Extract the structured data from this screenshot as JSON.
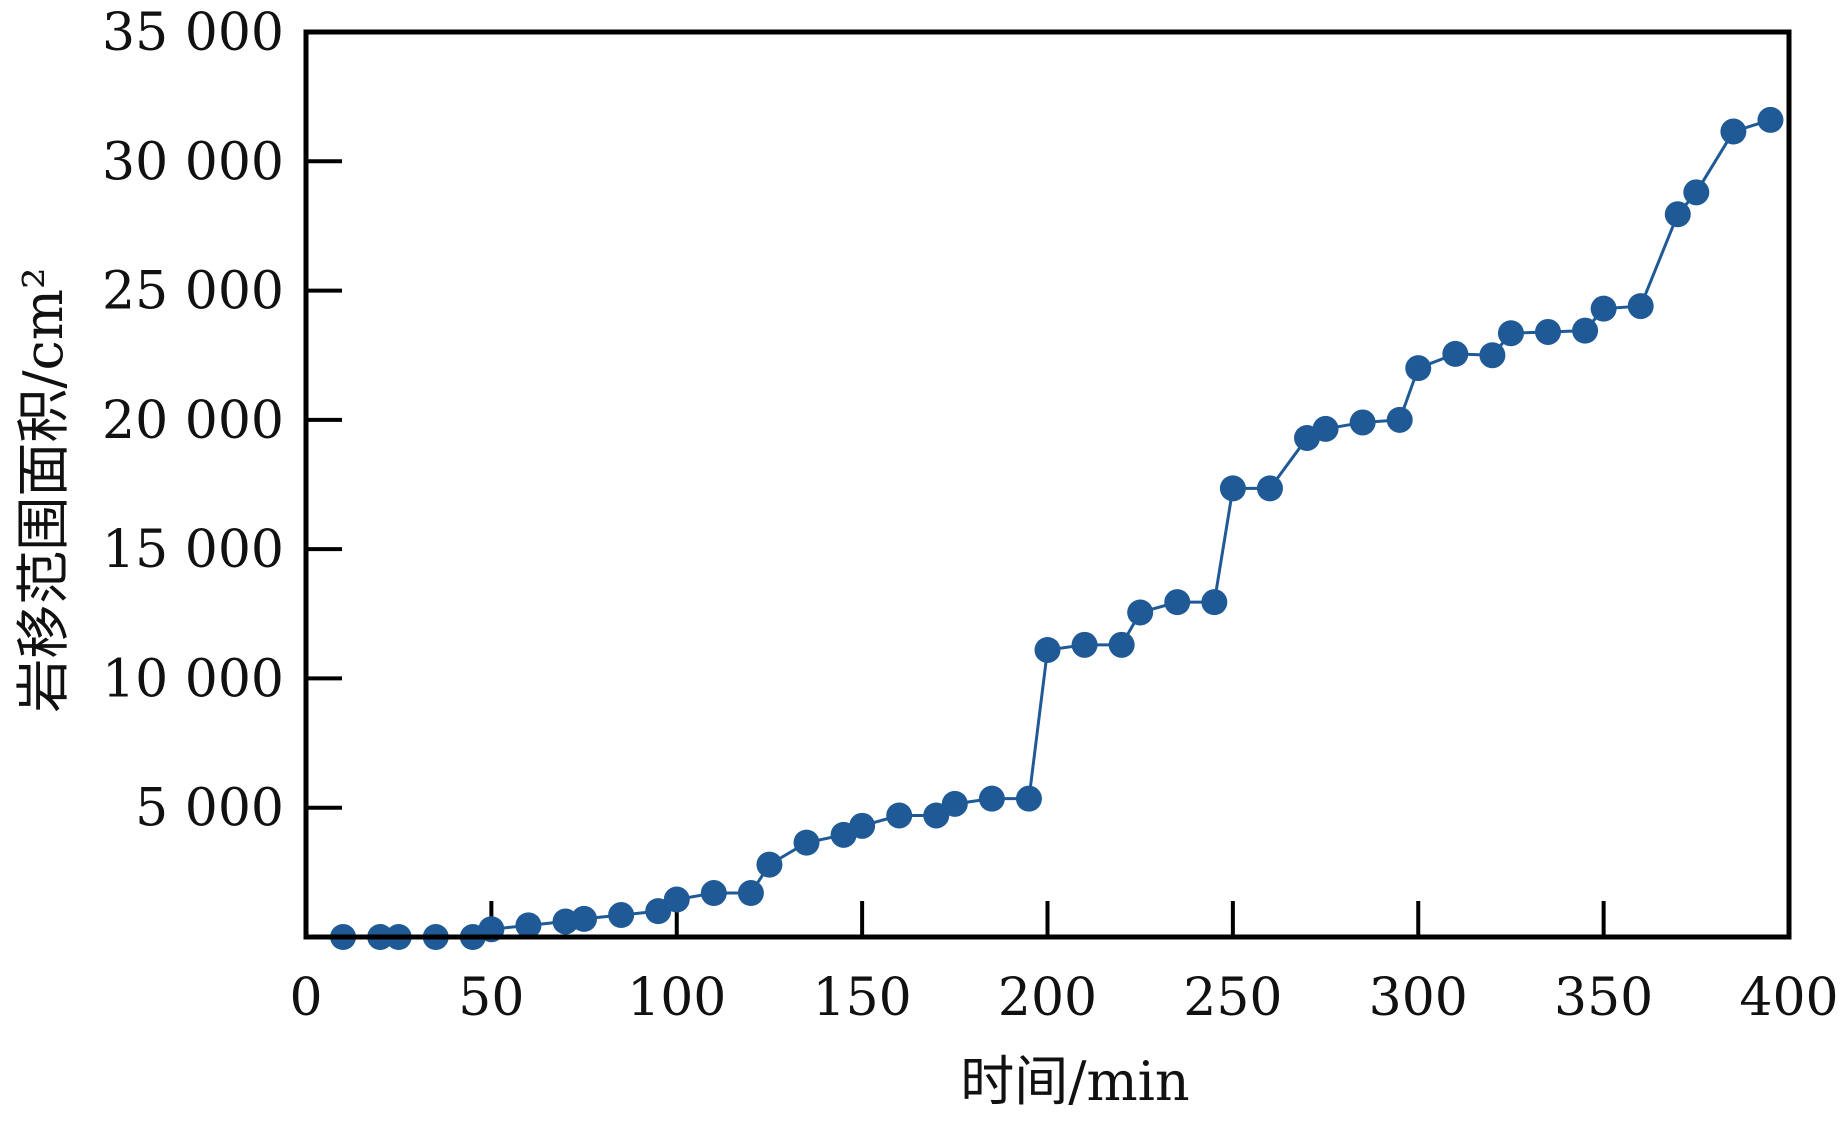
{
  "chart_data": {
    "type": "line",
    "title": "",
    "xlabel": "时间/min",
    "ylabel": "岩移范围面积/cm²",
    "xlim": [
      0,
      400
    ],
    "ylim": [
      0,
      35000
    ],
    "grid": false,
    "x_ticks": [
      0,
      50,
      100,
      150,
      200,
      250,
      300,
      350,
      400
    ],
    "x_tick_labels": [
      "0",
      "50",
      "100",
      "150",
      "200",
      "250",
      "300",
      "350",
      "400"
    ],
    "y_ticks": [
      5000,
      10000,
      15000,
      20000,
      25000,
      30000,
      35000
    ],
    "y_tick_labels": [
      "5 000",
      "10 000",
      "15 000",
      "20 000",
      "25 000",
      "30 000",
      "35 000"
    ],
    "series": [
      {
        "name": "岩移范围面积",
        "color": "#1f5a96",
        "marker": "circle",
        "x": [
          10,
          20,
          25,
          35,
          45,
          50,
          60,
          70,
          75,
          85,
          95,
          100,
          110,
          120,
          125,
          135,
          145,
          150,
          160,
          170,
          175,
          185,
          195,
          200,
          210,
          220,
          225,
          235,
          245,
          250,
          260,
          270,
          275,
          285,
          295,
          300,
          310,
          320,
          325,
          335,
          345,
          350,
          360,
          370,
          375,
          385,
          395
        ],
        "y": [
          0,
          0,
          0,
          0,
          0,
          300,
          450,
          600,
          700,
          850,
          1000,
          1450,
          1700,
          1700,
          2800,
          3650,
          3950,
          4300,
          4700,
          4700,
          5150,
          5350,
          5350,
          11100,
          11300,
          11300,
          12550,
          12950,
          12950,
          17350,
          17350,
          19300,
          19650,
          19900,
          20000,
          22000,
          22550,
          22500,
          23350,
          23400,
          23450,
          24300,
          24400,
          27950,
          28800,
          31150,
          31600
        ]
      }
    ]
  }
}
